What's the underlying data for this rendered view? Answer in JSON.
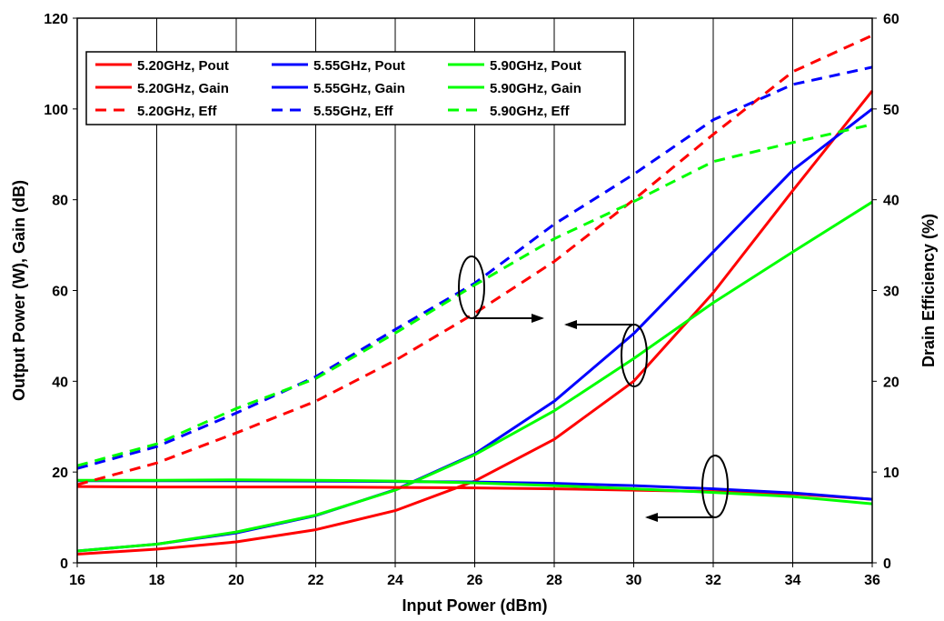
{
  "chart_data": {
    "type": "line",
    "xlabel": "Input Power (dBm)",
    "ylabel": "Output Power (W), Gain (dB)",
    "y2label": "Drain Efficiency (%)",
    "xlim": [
      16,
      36
    ],
    "ylim": [
      0,
      120
    ],
    "y2lim": [
      0,
      60
    ],
    "x_ticks": [
      16,
      18,
      20,
      22,
      24,
      26,
      28,
      30,
      32,
      34,
      36
    ],
    "y_ticks": [
      0,
      20,
      40,
      60,
      80,
      100,
      120
    ],
    "y2_ticks": [
      0,
      10,
      20,
      30,
      40,
      50,
      60
    ],
    "grid": "vertical",
    "legend_position": "top-left",
    "x": [
      16,
      18,
      20,
      22,
      24,
      26,
      28,
      30,
      32,
      34,
      36
    ],
    "series": [
      {
        "name": "5.20GHz, Pout",
        "axis": "left",
        "style": "solid",
        "color": "#ff0000",
        "values": [
          1.9,
          3.0,
          4.6,
          7.3,
          11.5,
          18.0,
          27.2,
          40.0,
          59.5,
          82.0,
          104.0
        ]
      },
      {
        "name": "5.55GHz, Pout",
        "axis": "left",
        "style": "solid",
        "color": "#0000ff",
        "values": [
          2.6,
          4.1,
          6.6,
          10.4,
          16.1,
          24.0,
          35.6,
          50.5,
          68.5,
          86.5,
          100.0
        ]
      },
      {
        "name": "5.90GHz, Pout",
        "axis": "left",
        "style": "solid",
        "color": "#00ff00",
        "values": [
          2.6,
          4.1,
          6.8,
          10.5,
          16.0,
          23.8,
          33.5,
          45.0,
          57.3,
          68.5,
          79.5
        ]
      },
      {
        "name": "5.20GHz, Gain",
        "axis": "left",
        "style": "solid",
        "color": "#ff0000",
        "values": [
          16.8,
          16.7,
          16.7,
          16.7,
          16.6,
          16.5,
          16.3,
          16.0,
          15.7,
          15.2,
          14.0
        ]
      },
      {
        "name": "5.55GHz, Gain",
        "axis": "left",
        "style": "solid",
        "color": "#0000ff",
        "values": [
          18.1,
          18.1,
          18.1,
          18.0,
          17.9,
          17.8,
          17.5,
          17.0,
          16.3,
          15.4,
          14.0
        ]
      },
      {
        "name": "5.90GHz, Gain",
        "axis": "left",
        "style": "solid",
        "color": "#00ff00",
        "values": [
          18.2,
          18.2,
          18.3,
          18.2,
          18.0,
          17.6,
          17.0,
          16.3,
          15.5,
          14.6,
          13.0
        ]
      },
      {
        "name": "5.20GHz, Eff",
        "axis": "right",
        "style": "dashed",
        "color": "#ff0000",
        "values": [
          8.6,
          11.0,
          14.3,
          17.8,
          22.3,
          27.5,
          33.2,
          40.0,
          47.2,
          54.1,
          58.1
        ]
      },
      {
        "name": "5.55GHz, Eff",
        "axis": "right",
        "style": "dashed",
        "color": "#0000ff",
        "values": [
          10.4,
          12.8,
          16.5,
          20.5,
          25.7,
          30.8,
          37.3,
          42.8,
          48.8,
          52.7,
          54.6
        ]
      },
      {
        "name": "5.90GHz, Eff",
        "axis": "right",
        "style": "dashed",
        "color": "#00ff00",
        "values": [
          10.7,
          13.1,
          17.0,
          20.3,
          25.3,
          30.6,
          35.7,
          39.8,
          44.2,
          46.3,
          48.3
        ]
      }
    ]
  }
}
